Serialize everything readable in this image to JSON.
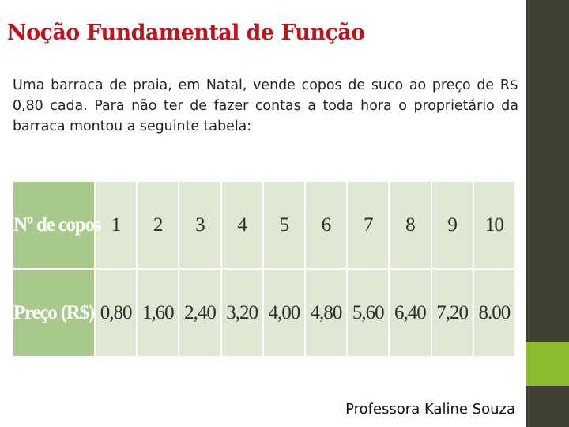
{
  "title": "Noção Fundamental de Função",
  "paragraph": "Uma barraca de praia, em Natal, vende copos de suco ao preço de R$ 0,80 cada. Para não ter de fazer contas a toda hora o proprietário da barraca montou a seguinte tabela:",
  "table": {
    "row_labels": [
      "Nº de copos",
      "Preço (R$)"
    ],
    "copos": [
      "1",
      "2",
      "3",
      "4",
      "5",
      "6",
      "7",
      "8",
      "9",
      "10"
    ],
    "precos": [
      "0,80",
      "1,60",
      "2,40",
      "3,20",
      "4,00",
      "4,80",
      "5,60",
      "6,40",
      "7,20",
      "8.00"
    ]
  },
  "footer": "Professora Kaline Souza",
  "colors": {
    "title": "#c0141a",
    "sidebar_dark": "#3f3f33",
    "sidebar_accent": "#8dbb2f",
    "table_header": "#a9c98c",
    "table_cell": "#dfe8d2"
  }
}
